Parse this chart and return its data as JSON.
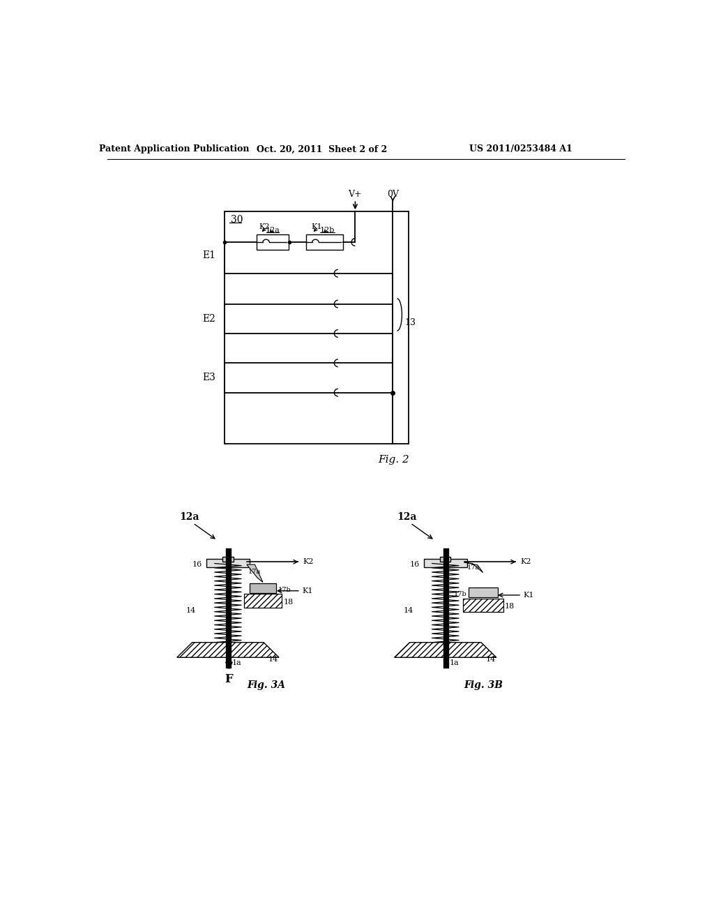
{
  "bg_color": "#ffffff",
  "header_left": "Patent Application Publication",
  "header_mid": "Oct. 20, 2011  Sheet 2 of 2",
  "header_right": "US 2011/0253484 A1",
  "fig2_label": "Fig. 2",
  "fig3a_label": "Fig. 3A",
  "fig3b_label": "Fig. 3B",
  "box30_label": "30",
  "vplus_label": "V+",
  "zerov_label": "0V",
  "wire13_label": "13",
  "e1_label": "E1",
  "e2_label": "E2",
  "e3_label": "E3",
  "k1_label": "K1",
  "k2_label": "K2",
  "sw12a_label": "12a",
  "sw12b_label": "12b",
  "label_16": "16",
  "label_14": "14",
  "label_17a": "17a",
  "label_17b": "17b",
  "label_18": "18",
  "label_1a": "1a",
  "label_F": "F",
  "label_12a": "12a",
  "label_K2": "K2",
  "label_K1": "K1"
}
